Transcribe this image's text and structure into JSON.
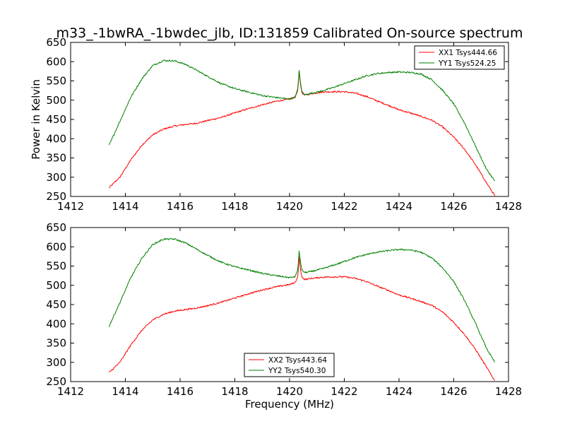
{
  "chart_data": [
    {
      "type": "line",
      "title": "m33_-1bwRA_-1bwdec_jlb, ID:131859 Calibrated On-source spectrum",
      "xlabel": "",
      "ylabel": "Power in Kelvin",
      "xlim": [
        1412,
        1428
      ],
      "ylim": [
        250,
        650
      ],
      "xticks": [
        1412,
        1414,
        1416,
        1418,
        1420,
        1422,
        1424,
        1426,
        1428
      ],
      "yticks": [
        250,
        300,
        350,
        400,
        450,
        500,
        550,
        600,
        650
      ],
      "legend_position": "top-right",
      "series": [
        {
          "name": "XX1 Tsys444.66",
          "color": "#ff0000",
          "x": [
            1413.4,
            1413.8,
            1414.2,
            1414.6,
            1415.0,
            1415.4,
            1415.8,
            1416.2,
            1416.6,
            1417.0,
            1417.5,
            1418.0,
            1418.5,
            1419.0,
            1419.5,
            1420.0,
            1420.2,
            1420.3,
            1420.35,
            1420.4,
            1420.45,
            1420.55,
            1420.8,
            1421.2,
            1421.6,
            1422.0,
            1422.4,
            1422.8,
            1423.2,
            1423.6,
            1424.0,
            1424.4,
            1424.8,
            1425.2,
            1425.6,
            1426.0,
            1426.4,
            1426.8,
            1427.2,
            1427.5
          ],
          "values": [
            272,
            300,
            345,
            383,
            410,
            425,
            433,
            437,
            440,
            447,
            455,
            467,
            478,
            488,
            497,
            503,
            508,
            525,
            575,
            540,
            520,
            513,
            517,
            521,
            522,
            522,
            518,
            510,
            498,
            487,
            475,
            467,
            458,
            448,
            430,
            404,
            372,
            332,
            285,
            252
          ]
        },
        {
          "name": "YY1 Tsys524.25",
          "color": "#008000",
          "x": [
            1413.4,
            1413.8,
            1414.2,
            1414.6,
            1415.0,
            1415.4,
            1415.8,
            1416.2,
            1416.6,
            1417.0,
            1417.5,
            1418.0,
            1418.5,
            1419.0,
            1419.5,
            1420.0,
            1420.2,
            1420.3,
            1420.35,
            1420.4,
            1420.45,
            1420.55,
            1420.8,
            1421.2,
            1421.6,
            1422.0,
            1422.4,
            1422.8,
            1423.2,
            1423.6,
            1424.0,
            1424.4,
            1424.8,
            1425.2,
            1425.6,
            1426.0,
            1426.4,
            1426.8,
            1427.2,
            1427.5
          ],
          "values": [
            382,
            445,
            508,
            555,
            590,
            603,
            602,
            593,
            578,
            562,
            543,
            530,
            521,
            512,
            507,
            503,
            507,
            530,
            578,
            545,
            522,
            514,
            518,
            524,
            533,
            543,
            553,
            563,
            569,
            572,
            573,
            572,
            568,
            553,
            525,
            490,
            440,
            380,
            320,
            290
          ]
        }
      ]
    },
    {
      "type": "line",
      "title": "",
      "xlabel": "Frequency (MHz)",
      "ylabel": "",
      "xlim": [
        1412,
        1428
      ],
      "ylim": [
        250,
        650
      ],
      "xticks": [
        1412,
        1414,
        1416,
        1418,
        1420,
        1422,
        1424,
        1426,
        1428
      ],
      "yticks": [
        250,
        300,
        350,
        400,
        450,
        500,
        550,
        600,
        650
      ],
      "legend_position": "bottom-center",
      "series": [
        {
          "name": "XX2 Tsys443.64",
          "color": "#ff0000",
          "x": [
            1413.4,
            1413.8,
            1414.2,
            1414.6,
            1415.0,
            1415.4,
            1415.8,
            1416.2,
            1416.6,
            1417.0,
            1417.5,
            1418.0,
            1418.5,
            1419.0,
            1419.5,
            1420.0,
            1420.2,
            1420.3,
            1420.35,
            1420.4,
            1420.45,
            1420.55,
            1420.8,
            1421.2,
            1421.6,
            1422.0,
            1422.4,
            1422.8,
            1423.2,
            1423.6,
            1424.0,
            1424.4,
            1424.8,
            1425.2,
            1425.6,
            1426.0,
            1426.4,
            1426.8,
            1427.2,
            1427.5
          ],
          "values": [
            273,
            300,
            345,
            383,
            410,
            425,
            433,
            437,
            441,
            447,
            456,
            467,
            478,
            488,
            496,
            502,
            507,
            522,
            575,
            540,
            522,
            515,
            518,
            521,
            522,
            522,
            518,
            510,
            498,
            487,
            475,
            467,
            458,
            448,
            430,
            404,
            372,
            333,
            287,
            252
          ]
        },
        {
          "name": "YY2 Tsys540.30",
          "color": "#008000",
          "x": [
            1413.4,
            1413.8,
            1414.2,
            1414.6,
            1415.0,
            1415.4,
            1415.8,
            1416.2,
            1416.6,
            1417.0,
            1417.5,
            1418.0,
            1418.5,
            1419.0,
            1419.5,
            1420.0,
            1420.2,
            1420.3,
            1420.35,
            1420.4,
            1420.45,
            1420.55,
            1420.8,
            1421.2,
            1421.6,
            1422.0,
            1422.4,
            1422.8,
            1423.2,
            1423.6,
            1424.0,
            1424.4,
            1424.8,
            1425.2,
            1425.6,
            1426.0,
            1426.4,
            1426.8,
            1427.2,
            1427.5
          ],
          "values": [
            393,
            455,
            520,
            570,
            606,
            620,
            620,
            610,
            594,
            578,
            560,
            548,
            540,
            531,
            525,
            520,
            522,
            540,
            590,
            560,
            540,
            533,
            536,
            543,
            552,
            562,
            572,
            580,
            586,
            590,
            593,
            592,
            586,
            571,
            545,
            510,
            460,
            400,
            336,
            300
          ]
        }
      ]
    }
  ]
}
